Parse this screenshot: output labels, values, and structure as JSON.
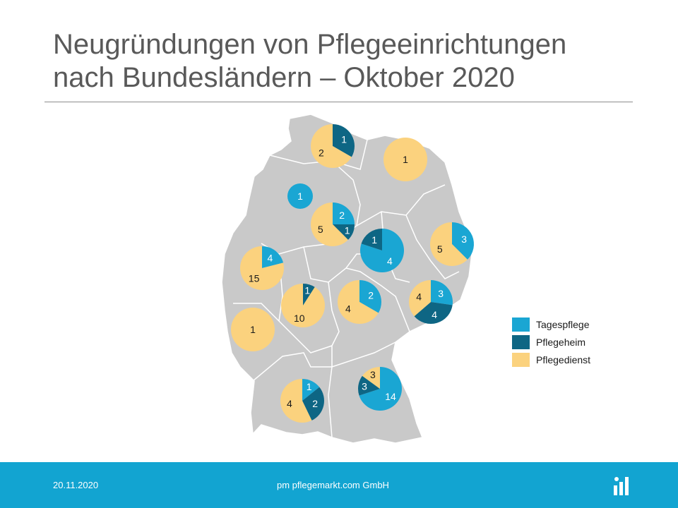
{
  "title_line1": "Neugründungen von Pflegeeinrichtungen",
  "title_line2": "nach Bundesländern – Oktober 2020",
  "colors": {
    "tagespflege": "#1aa6d3",
    "pflegeheim": "#0e6684",
    "pflegedienst": "#fbd27e",
    "map_fill": "#c9c9c9",
    "map_stroke": "#ffffff",
    "footer": "#12a4d1"
  },
  "chart_data": {
    "type": "pie",
    "legend": [
      "Tagespflege",
      "Pflegeheim",
      "Pflegedienst"
    ],
    "legend_position": "right",
    "series": [
      {
        "name": "Tagespflege",
        "color": "#1aa6d3"
      },
      {
        "name": "Pflegeheim",
        "color": "#0e6684"
      },
      {
        "name": "Pflegedienst",
        "color": "#fbd27e"
      }
    ],
    "pies": [
      {
        "region": "Schleswig-Holstein",
        "values": [
          0,
          1,
          2
        ],
        "labels": [
          "",
          "1",
          "2"
        ]
      },
      {
        "region": "Mecklenburg-Vorpommern",
        "values": [
          0,
          0,
          1
        ],
        "labels": [
          "",
          "",
          "1"
        ]
      },
      {
        "region": "Bremen",
        "values": [
          1,
          0,
          0
        ],
        "labels": [
          "1",
          "",
          ""
        ]
      },
      {
        "region": "Niedersachsen",
        "values": [
          2,
          1,
          5
        ],
        "labels": [
          "2",
          "1",
          "5"
        ]
      },
      {
        "region": "Sachsen-Anhalt",
        "values": [
          4,
          1,
          0
        ],
        "labels": [
          "4",
          "1",
          ""
        ]
      },
      {
        "region": "Brandenburg",
        "values": [
          3,
          0,
          5
        ],
        "labels": [
          "3",
          "",
          "5"
        ]
      },
      {
        "region": "Nordrhein-Westfalen",
        "values": [
          4,
          0,
          15
        ],
        "labels": [
          "4",
          "",
          "15"
        ]
      },
      {
        "region": "Hessen",
        "values": [
          0,
          1,
          10
        ],
        "labels": [
          "",
          "1",
          "10"
        ]
      },
      {
        "region": "Thüringen",
        "values": [
          2,
          0,
          4
        ],
        "labels": [
          "2",
          "",
          "4"
        ]
      },
      {
        "region": "Sachsen",
        "values": [
          3,
          4,
          4
        ],
        "labels": [
          "3",
          "4",
          "4"
        ]
      },
      {
        "region": "Rheinland-Pfalz",
        "values": [
          0,
          0,
          1
        ],
        "labels": [
          "",
          "",
          "1"
        ]
      },
      {
        "region": "Bayern",
        "values": [
          14,
          3,
          3
        ],
        "labels": [
          "14",
          "3",
          "3"
        ]
      },
      {
        "region": "Baden-Württemberg",
        "values": [
          1,
          2,
          4
        ],
        "labels": [
          "1",
          "2",
          "4"
        ]
      }
    ]
  },
  "footer": {
    "date": "20.11.2020",
    "company": "pm pflegemarkt.com GmbH"
  }
}
